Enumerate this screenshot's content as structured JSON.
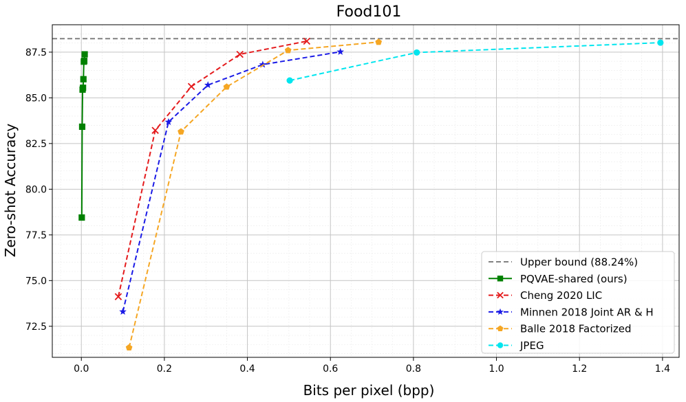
{
  "chart_data": {
    "type": "line",
    "title": "Food101",
    "xlabel": "Bits per pixel (bpp)",
    "ylabel": "Zero-shot Accuracy",
    "xlim": [
      -0.07,
      1.44
    ],
    "ylim": [
      70.8,
      89.0
    ],
    "xticks": [
      0.0,
      0.2,
      0.4,
      0.6,
      0.8,
      1.0,
      1.2,
      1.4
    ],
    "xtick_labels": [
      "0.0",
      "0.2",
      "0.4",
      "0.6",
      "0.8",
      "1.0",
      "1.2",
      "1.4"
    ],
    "yticks": [
      72.5,
      75.0,
      77.5,
      80.0,
      82.5,
      85.0,
      87.5
    ],
    "ytick_labels": [
      "72.5",
      "75.0",
      "77.5",
      "80.0",
      "82.5",
      "85.0",
      "87.5"
    ],
    "grid": true,
    "legend_position": "bottom-right",
    "upper_bound": {
      "name": "Upper bound (88.24%)",
      "value": 88.24,
      "color": "#808080"
    },
    "series": [
      {
        "name": "PQVAE-shared (ours)",
        "color": "#008000",
        "marker": "square",
        "line": "solid",
        "x": [
          0.001,
          0.002,
          0.003,
          0.004,
          0.005,
          0.006,
          0.007,
          0.008
        ],
        "y": [
          78.45,
          83.42,
          85.45,
          85.55,
          86.02,
          86.98,
          87.02,
          87.38
        ]
      },
      {
        "name": "Cheng 2020 LIC",
        "color": "#e41a1c",
        "marker": "x",
        "line": "dashed",
        "x": [
          0.089,
          0.178,
          0.265,
          0.382,
          0.543
        ],
        "y": [
          74.12,
          83.22,
          85.62,
          87.38,
          88.1
        ]
      },
      {
        "name": "Minnen 2018 Joint AR & H",
        "color": "#1a1ae6",
        "marker": "star",
        "line": "dashed",
        "x": [
          0.1,
          0.21,
          0.305,
          0.437,
          0.624
        ],
        "y": [
          73.3,
          83.68,
          85.7,
          86.82,
          87.52
        ]
      },
      {
        "name": "Balle 2018 Factorized",
        "color": "#f5a623",
        "marker": "pentagon",
        "line": "dashed",
        "x": [
          0.115,
          0.24,
          0.35,
          0.498,
          0.716
        ],
        "y": [
          71.33,
          83.15,
          85.6,
          87.6,
          88.05
        ]
      },
      {
        "name": "JPEG",
        "color": "#00e5ee",
        "marker": "circle",
        "line": "dashed",
        "x": [
          0.502,
          0.808,
          1.395
        ],
        "y": [
          85.95,
          87.48,
          88.02
        ]
      }
    ]
  }
}
